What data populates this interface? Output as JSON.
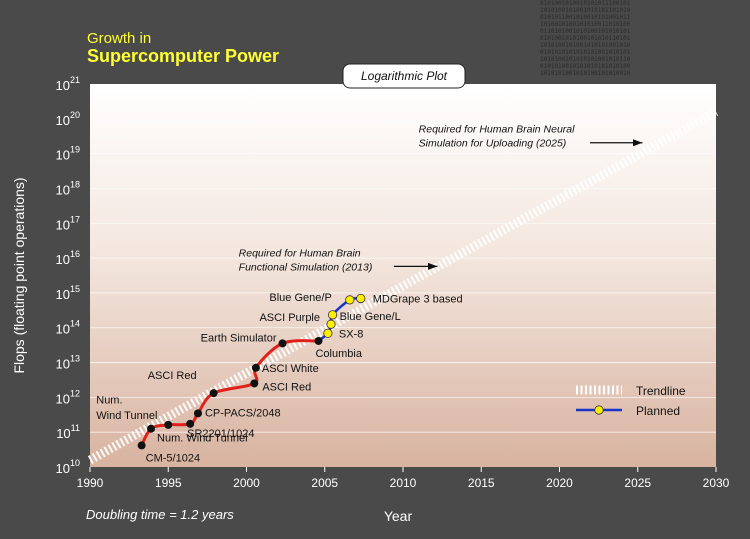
{
  "header": {
    "title_line1": "Growth in",
    "title_line2": "Supercomputer Power"
  },
  "plot_tab_label": "Logarithmic Plot",
  "footnote": "Doubling time = 1.2 years",
  "colors": {
    "title": "#ffff33",
    "background": "#4a4a4a",
    "plot_top": "#ffffff",
    "plot_bottom": "#d8b3a0",
    "actual_line": "#e0201a",
    "planned_line": "#1a33cc",
    "planned_marker": "#ffee00",
    "trendline": "#ffffff"
  },
  "chart_data": {
    "type": "line",
    "scale": "log",
    "xlabel": "Year",
    "ylabel": "Flops (floating point operations)",
    "xlim": [
      1990,
      2030
    ],
    "xticks": [
      1990,
      1995,
      2000,
      2005,
      2010,
      2015,
      2020,
      2025,
      2030
    ],
    "ylim_exponents": [
      10,
      21
    ],
    "grid": "horizontal",
    "legend_position": "right",
    "legend": [
      {
        "label": "Trendline",
        "style": "trend"
      },
      {
        "label": "Planned",
        "style": "planned"
      }
    ],
    "trendline": {
      "x": [
        1990,
        2030
      ],
      "y_exp": [
        10.2,
        20.2
      ]
    },
    "actual_series": {
      "x": [
        1993.3,
        1993.9,
        1995,
        1996.4,
        1996.9,
        1997.9,
        2000.5,
        2000.6,
        2002.3,
        2004.6
      ],
      "y_exp": [
        10.62,
        11.1,
        11.21,
        11.24,
        11.54,
        12.12,
        12.4,
        12.85,
        13.55,
        13.62
      ]
    },
    "planned_series": {
      "x": [
        2004.6,
        2005.2,
        2005.4,
        2005.5,
        2006.6,
        2007.3
      ],
      "y_exp": [
        13.62,
        13.84,
        14.1,
        14.37,
        14.8,
        14.84
      ]
    },
    "points": [
      {
        "x": 1993.3,
        "y_exp": 10.62,
        "label": "CM-5/1024",
        "kind": "actual"
      },
      {
        "x": 1993.9,
        "y_exp": 11.1,
        "label": "Num. Wind Tunnel",
        "kind": "actual"
      },
      {
        "x": 1995.0,
        "y_exp": 11.21,
        "label": "",
        "kind": "actual"
      },
      {
        "x": 1996.4,
        "y_exp": 11.24,
        "label": "SR2201/1024",
        "kind": "actual"
      },
      {
        "x": 1996.9,
        "y_exp": 11.54,
        "label": "CP-PACS/2048",
        "kind": "actual"
      },
      {
        "x": 1997.9,
        "y_exp": 12.12,
        "label": "ASCI Red",
        "kind": "actual"
      },
      {
        "x": 2000.5,
        "y_exp": 12.4,
        "label": "ASCI Red",
        "kind": "actual"
      },
      {
        "x": 2000.6,
        "y_exp": 12.85,
        "label": "ASCI White",
        "kind": "actual"
      },
      {
        "x": 2002.3,
        "y_exp": 13.55,
        "label": "Earth Simulator",
        "kind": "actual"
      },
      {
        "x": 2004.6,
        "y_exp": 13.62,
        "label": "Columbia",
        "kind": "actual"
      },
      {
        "x": 2005.2,
        "y_exp": 13.84,
        "label": "SX-8",
        "kind": "planned"
      },
      {
        "x": 2005.4,
        "y_exp": 14.1,
        "label": "ASCI Purple",
        "kind": "planned"
      },
      {
        "x": 2005.5,
        "y_exp": 14.37,
        "label": "Blue Gene/L",
        "kind": "planned"
      },
      {
        "x": 2006.6,
        "y_exp": 14.8,
        "label": "Blue Gene/P",
        "kind": "planned"
      },
      {
        "x": 2007.3,
        "y_exp": 14.84,
        "label": "MDGrape 3 based",
        "kind": "planned"
      }
    ],
    "extra_labels": [
      {
        "text": "Num.",
        "x": 1990.4,
        "y_exp": 11.82
      },
      {
        "text": "Wind Tunnel",
        "x": 1990.4,
        "y_exp": 11.38
      }
    ],
    "annotations": [
      {
        "lines": [
          "Required for Human Brain",
          "Functional Simulation (2013)"
        ],
        "x": 1999.5,
        "y_exp": 16.05,
        "arrow_to": [
          2012.2,
          15.6
        ]
      },
      {
        "lines": [
          "Required for Human Brain Neural",
          "Simulation for Uploading (2025)"
        ],
        "x": 2011.0,
        "y_exp": 19.6,
        "arrow_to": [
          2025.3,
          19.15
        ]
      }
    ]
  }
}
